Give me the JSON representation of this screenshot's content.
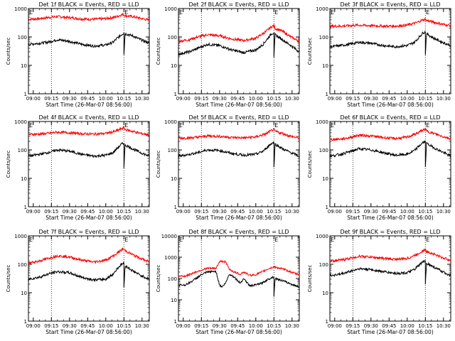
{
  "figure": {
    "time_axis_labels": [
      "09:00",
      "09:15",
      "09:30",
      "09:45",
      "10:00",
      "10:15",
      "10:30"
    ],
    "x_label": "Start Time (26-Mar-07 08:56:00)",
    "y_label": "Counts/sec",
    "marker_label": "E",
    "colors": {
      "events": "#000000",
      "lld": "#ff0000",
      "axes": "#000000",
      "background": "#ffffff"
    }
  },
  "chart_data": [
    {
      "type": "line",
      "title": "Det 1f BLACK = Events, RED = LLD",
      "xlabel": "Start Time (26-Mar-07 08:56:00)",
      "ylabel": "Counts/sec",
      "xlim": [
        "08:56",
        "10:36"
      ],
      "ylim": [
        1,
        1000
      ],
      "ylog": true,
      "y_ticks": [
        "1",
        "10",
        "100",
        "1000"
      ],
      "x_ticks": [
        "09:00",
        "09:15",
        "09:30",
        "09:45",
        "10:00",
        "10:15",
        "10:30"
      ],
      "vlines": [
        "09:15",
        "10:15"
      ],
      "marker_time": "10:15",
      "series": [
        {
          "name": "LLD",
          "color": "#ff0000",
          "x": [
            "08:56",
            "09:05",
            "09:12",
            "09:20",
            "09:30",
            "09:40",
            "09:50",
            "10:00",
            "10:08",
            "10:13",
            "10:15",
            "10:16",
            "10:22",
            "10:29",
            "10:36"
          ],
          "y": [
            420,
            440,
            480,
            520,
            480,
            430,
            420,
            440,
            500,
            600,
            620,
            560,
            520,
            450,
            390
          ]
        },
        {
          "name": "Events",
          "color": "#000000",
          "x": [
            "08:56",
            "09:05",
            "09:12",
            "09:20",
            "09:30",
            "09:40",
            "09:50",
            "10:00",
            "10:06",
            "10:10",
            "10:13",
            "10:15",
            "10:15",
            "10:16",
            "10:22",
            "10:29",
            "10:36"
          ],
          "y": [
            55,
            60,
            65,
            80,
            70,
            55,
            48,
            52,
            65,
            95,
            120,
            140,
            25,
            130,
            110,
            80,
            60
          ]
        }
      ]
    },
    {
      "type": "line",
      "title": "Det 2f BLACK = Events, RED = LLD",
      "xlabel": "Start Time (26-Mar-07 08:56:00)",
      "ylabel": "Counts/sec",
      "xlim": [
        "08:56",
        "10:36"
      ],
      "ylim": [
        1,
        1000
      ],
      "ylog": true,
      "y_ticks": [
        "1",
        "10",
        "100",
        "1000"
      ],
      "x_ticks": [
        "09:00",
        "09:15",
        "09:30",
        "09:45",
        "10:00",
        "10:15",
        "10:30"
      ],
      "vlines": [
        "09:15",
        "10:15"
      ],
      "marker_time": "10:15",
      "series": [
        {
          "name": "LLD",
          "color": "#ff0000",
          "x": [
            "08:56",
            "09:05",
            "09:12",
            "09:20",
            "09:30",
            "09:40",
            "09:50",
            "10:00",
            "10:08",
            "10:13",
            "10:15",
            "10:16",
            "10:22",
            "10:29",
            "10:36"
          ],
          "y": [
            70,
            80,
            100,
            120,
            110,
            85,
            75,
            90,
            150,
            230,
            250,
            200,
            160,
            100,
            70
          ]
        },
        {
          "name": "Events",
          "color": "#000000",
          "x": [
            "08:56",
            "09:05",
            "09:12",
            "09:20",
            "09:30",
            "09:40",
            "09:50",
            "10:00",
            "10:06",
            "10:10",
            "10:13",
            "10:15",
            "10:15",
            "10:16",
            "10:22",
            "10:29",
            "10:36"
          ],
          "y": [
            25,
            30,
            40,
            55,
            50,
            35,
            28,
            35,
            55,
            90,
            130,
            140,
            20,
            120,
            80,
            50,
            30
          ]
        }
      ]
    },
    {
      "type": "line",
      "title": "Det 3f BLACK = Events, RED = LLD",
      "xlabel": "Start Time (26-Mar-07 08:56:00)",
      "ylabel": "Counts/sec",
      "xlim": [
        "08:56",
        "10:36"
      ],
      "ylim": [
        1,
        1000
      ],
      "ylog": true,
      "y_ticks": [
        "1",
        "10",
        "100",
        "1000"
      ],
      "x_ticks": [
        "09:00",
        "09:15",
        "09:30",
        "09:45",
        "10:00",
        "10:15",
        "10:30"
      ],
      "vlines": [
        "09:15",
        "10:15"
      ],
      "marker_time": "10:15",
      "series": [
        {
          "name": "LLD",
          "color": "#ff0000",
          "x": [
            "08:56",
            "09:05",
            "09:12",
            "09:20",
            "09:30",
            "09:40",
            "09:50",
            "10:00",
            "10:08",
            "10:13",
            "10:15",
            "10:16",
            "10:22",
            "10:29",
            "10:36"
          ],
          "y": [
            240,
            240,
            250,
            260,
            250,
            240,
            240,
            260,
            320,
            400,
            420,
            380,
            330,
            280,
            250
          ]
        },
        {
          "name": "Events",
          "color": "#000000",
          "x": [
            "08:56",
            "09:05",
            "09:12",
            "09:20",
            "09:30",
            "09:40",
            "09:50",
            "10:00",
            "10:06",
            "10:10",
            "10:13",
            "10:15",
            "10:15",
            "10:16",
            "10:22",
            "10:29",
            "10:36"
          ],
          "y": [
            45,
            50,
            55,
            65,
            60,
            50,
            45,
            50,
            65,
            100,
            140,
            150,
            25,
            130,
            90,
            65,
            50
          ]
        }
      ]
    },
    {
      "type": "line",
      "title": "Det 4f BLACK = Events, RED = LLD",
      "xlabel": "Start Time (26-Mar-07 08:56:00)",
      "ylabel": "Counts/sec",
      "xlim": [
        "08:56",
        "10:36"
      ],
      "ylim": [
        1,
        1000
      ],
      "ylog": true,
      "y_ticks": [
        "1",
        "10",
        "100",
        "1000"
      ],
      "x_ticks": [
        "09:00",
        "09:15",
        "09:30",
        "09:45",
        "10:00",
        "10:15",
        "10:30"
      ],
      "vlines": [
        "09:15",
        "10:15"
      ],
      "marker_time": "10:15",
      "series": [
        {
          "name": "LLD",
          "color": "#ff0000",
          "x": [
            "08:56",
            "09:05",
            "09:12",
            "09:20",
            "09:30",
            "09:40",
            "09:50",
            "10:00",
            "10:08",
            "10:13",
            "10:15",
            "10:16",
            "10:22",
            "10:29",
            "10:36"
          ],
          "y": [
            350,
            360,
            380,
            420,
            400,
            370,
            360,
            380,
            450,
            560,
            600,
            520,
            450,
            380,
            340
          ]
        },
        {
          "name": "Events",
          "color": "#000000",
          "x": [
            "08:56",
            "09:05",
            "09:12",
            "09:20",
            "09:30",
            "09:40",
            "09:50",
            "10:00",
            "10:06",
            "10:10",
            "10:13",
            "10:15",
            "10:15",
            "10:16",
            "10:22",
            "10:29",
            "10:36"
          ],
          "y": [
            60,
            70,
            80,
            100,
            90,
            70,
            60,
            65,
            80,
            120,
            160,
            170,
            25,
            150,
            110,
            80,
            60
          ]
        }
      ]
    },
    {
      "type": "line",
      "title": "Det 5f BLACK = Events, RED = LLD",
      "xlabel": "Start Time (26-Mar-07 08:56:00)",
      "ylabel": "Counts/sec",
      "xlim": [
        "08:56",
        "10:36"
      ],
      "ylim": [
        1,
        1000
      ],
      "ylog": true,
      "y_ticks": [
        "1",
        "10",
        "100",
        "1000"
      ],
      "x_ticks": [
        "09:00",
        "09:15",
        "09:30",
        "09:45",
        "10:00",
        "10:15",
        "10:30"
      ],
      "vlines": [
        "09:15",
        "10:15"
      ],
      "marker_time": "10:15",
      "series": [
        {
          "name": "LLD",
          "color": "#ff0000",
          "x": [
            "08:56",
            "09:05",
            "09:12",
            "09:20",
            "09:30",
            "09:40",
            "09:50",
            "10:00",
            "10:08",
            "10:13",
            "10:15",
            "10:16",
            "10:22",
            "10:29",
            "10:36"
          ],
          "y": [
            260,
            265,
            280,
            310,
            300,
            275,
            265,
            285,
            360,
            480,
            520,
            450,
            380,
            300,
            260
          ]
        },
        {
          "name": "Events",
          "color": "#000000",
          "x": [
            "08:56",
            "09:05",
            "09:12",
            "09:20",
            "09:30",
            "09:40",
            "09:50",
            "10:00",
            "10:06",
            "10:10",
            "10:13",
            "10:15",
            "10:15",
            "10:16",
            "10:22",
            "10:29",
            "10:36"
          ],
          "y": [
            60,
            70,
            80,
            100,
            95,
            75,
            65,
            70,
            90,
            130,
            170,
            180,
            25,
            160,
            110,
            80,
            60
          ]
        }
      ]
    },
    {
      "type": "line",
      "title": "Det 6f BLACK = Events, RED = LLD",
      "xlabel": "Start Time (26-Mar-07 08:56:00)",
      "ylabel": "Counts/sec",
      "xlim": [
        "08:56",
        "10:36"
      ],
      "ylim": [
        1,
        1000
      ],
      "ylog": true,
      "y_ticks": [
        "1",
        "10",
        "100",
        "1000"
      ],
      "x_ticks": [
        "09:00",
        "09:15",
        "09:30",
        "09:45",
        "10:00",
        "10:15",
        "10:30"
      ],
      "vlines": [
        "09:15",
        "10:15"
      ],
      "marker_time": "10:15",
      "series": [
        {
          "name": "LLD",
          "color": "#ff0000",
          "x": [
            "08:56",
            "09:05",
            "09:12",
            "09:20",
            "09:30",
            "09:40",
            "09:50",
            "10:00",
            "10:08",
            "10:13",
            "10:15",
            "10:16",
            "10:22",
            "10:29",
            "10:36"
          ],
          "y": [
            230,
            240,
            270,
            330,
            310,
            270,
            250,
            280,
            380,
            500,
            540,
            460,
            380,
            300,
            250
          ]
        },
        {
          "name": "Events",
          "color": "#000000",
          "x": [
            "08:56",
            "09:05",
            "09:12",
            "09:20",
            "09:30",
            "09:40",
            "09:50",
            "10:00",
            "10:06",
            "10:10",
            "10:13",
            "10:15",
            "10:15",
            "10:16",
            "10:22",
            "10:29",
            "10:36"
          ],
          "y": [
            60,
            70,
            85,
            110,
            100,
            80,
            65,
            70,
            95,
            140,
            180,
            190,
            25,
            170,
            120,
            85,
            60
          ]
        }
      ]
    },
    {
      "type": "line",
      "title": "Det 7f BLACK = Events, RED = LLD",
      "xlabel": "Start Time (26-Mar-07 08:56:00)",
      "ylabel": "Counts/sec",
      "xlim": [
        "08:56",
        "10:36"
      ],
      "ylim": [
        1,
        1000
      ],
      "ylog": true,
      "y_ticks": [
        "1",
        "10",
        "100",
        "1000"
      ],
      "x_ticks": [
        "09:00",
        "09:15",
        "09:30",
        "09:45",
        "10:00",
        "10:15",
        "10:30"
      ],
      "vlines": [
        "09:15",
        "10:15"
      ],
      "marker_time": "10:15",
      "series": [
        {
          "name": "LLD",
          "color": "#ff0000",
          "x": [
            "08:56",
            "09:05",
            "09:12",
            "09:20",
            "09:30",
            "09:40",
            "09:50",
            "10:00",
            "10:08",
            "10:13",
            "10:15",
            "10:16",
            "10:22",
            "10:29",
            "10:36"
          ],
          "y": [
            110,
            130,
            160,
            200,
            180,
            140,
            120,
            140,
            220,
            320,
            350,
            300,
            220,
            160,
            120
          ]
        },
        {
          "name": "Events",
          "color": "#000000",
          "x": [
            "08:56",
            "09:05",
            "09:12",
            "09:20",
            "09:30",
            "09:40",
            "09:50",
            "10:00",
            "10:06",
            "10:10",
            "10:13",
            "10:15",
            "10:15",
            "10:16",
            "10:22",
            "10:29",
            "10:36"
          ],
          "y": [
            30,
            35,
            45,
            55,
            50,
            35,
            28,
            30,
            45,
            75,
            100,
            110,
            15,
            90,
            60,
            40,
            30
          ]
        }
      ]
    },
    {
      "type": "line",
      "title": "Det 8f BLACK = Events, RED = LLD",
      "xlabel": "Start Time (26-Mar-07 08:56:00)",
      "ylabel": "Counts/sec",
      "xlim": [
        "08:56",
        "10:36"
      ],
      "ylim": [
        1,
        10000
      ],
      "ylog": true,
      "y_ticks": [
        "1",
        "10",
        "100",
        "1000",
        "10000"
      ],
      "x_ticks": [
        "09:00",
        "09:15",
        "09:30",
        "09:45",
        "10:00",
        "10:15",
        "10:30"
      ],
      "vlines": [
        "09:15",
        "10:15"
      ],
      "marker_time": "10:15",
      "series": [
        {
          "name": "LLD",
          "color": "#ff0000",
          "x": [
            "08:56",
            "09:02",
            "09:08",
            "09:15",
            "09:20",
            "09:27",
            "09:30",
            "09:32",
            "09:35",
            "09:38",
            "09:42",
            "09:47",
            "09:50",
            "09:55",
            "10:00",
            "10:05",
            "10:10",
            "10:15",
            "10:20",
            "10:25",
            "10:30",
            "10:36"
          ],
          "y": [
            130,
            130,
            180,
            250,
            300,
            300,
            600,
            650,
            600,
            280,
            200,
            160,
            200,
            140,
            150,
            200,
            280,
            350,
            300,
            250,
            190,
            150
          ]
        },
        {
          "name": "Events",
          "color": "#000000",
          "x": [
            "08:56",
            "09:02",
            "09:08",
            "09:15",
            "09:20",
            "09:27",
            "09:30",
            "09:32",
            "09:35",
            "09:38",
            "09:42",
            "09:47",
            "09:50",
            "09:55",
            "10:00",
            "10:05",
            "10:10",
            "10:13",
            "10:15",
            "10:15",
            "10:16",
            "10:22",
            "10:29",
            "10:36"
          ],
          "y": [
            50,
            50,
            80,
            150,
            200,
            220,
            50,
            40,
            60,
            160,
            120,
            60,
            100,
            45,
            50,
            60,
            90,
            110,
            120,
            15,
            100,
            80,
            55,
            40
          ]
        }
      ]
    },
    {
      "type": "line",
      "title": "Det 9f BLACK = Events, RED = LLD",
      "xlabel": "Start Time (26-Mar-07 08:56:00)",
      "ylabel": "Counts/sec",
      "xlim": [
        "08:56",
        "10:36"
      ],
      "ylim": [
        1,
        1000
      ],
      "ylog": true,
      "y_ticks": [
        "1",
        "10",
        "100",
        "1000"
      ],
      "x_ticks": [
        "09:00",
        "09:15",
        "09:30",
        "09:45",
        "10:00",
        "10:15",
        "10:30"
      ],
      "vlines": [
        "09:15",
        "10:15"
      ],
      "marker_time": "10:15",
      "series": [
        {
          "name": "LLD",
          "color": "#ff0000",
          "x": [
            "08:56",
            "09:05",
            "09:12",
            "09:20",
            "09:30",
            "09:40",
            "09:50",
            "10:00",
            "10:08",
            "10:13",
            "10:15",
            "10:16",
            "10:22",
            "10:29",
            "10:36"
          ],
          "y": [
            130,
            140,
            160,
            190,
            180,
            160,
            150,
            160,
            220,
            300,
            320,
            280,
            230,
            170,
            140
          ]
        },
        {
          "name": "Events",
          "color": "#000000",
          "x": [
            "08:56",
            "09:05",
            "09:12",
            "09:20",
            "09:30",
            "09:40",
            "09:50",
            "10:00",
            "10:06",
            "10:10",
            "10:13",
            "10:15",
            "10:15",
            "10:16",
            "10:22",
            "10:29",
            "10:36"
          ],
          "y": [
            40,
            45,
            55,
            70,
            65,
            55,
            48,
            50,
            65,
            95,
            120,
            130,
            20,
            110,
            80,
            55,
            40
          ]
        }
      ]
    }
  ]
}
